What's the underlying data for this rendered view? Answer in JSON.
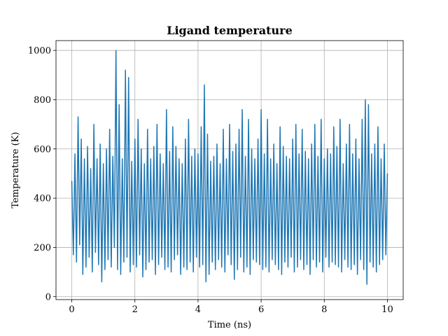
{
  "chart_data": {
    "type": "line",
    "title": "Ligand temperature",
    "xlabel": "Time (ns)",
    "ylabel": "Temperature (K)",
    "xlim": [
      -0.5,
      10.5
    ],
    "ylim": [
      -12,
      1040
    ],
    "xticks": [
      0,
      2,
      4,
      6,
      8,
      10
    ],
    "yticks": [
      0,
      200,
      400,
      600,
      800,
      1000
    ],
    "grid": true,
    "series": [
      {
        "color": "#1f77b4",
        "x": [
          0.0,
          0.05,
          0.1,
          0.15,
          0.2,
          0.25,
          0.3,
          0.35,
          0.4,
          0.45,
          0.5,
          0.55,
          0.6,
          0.65,
          0.7,
          0.75,
          0.8,
          0.85,
          0.9,
          0.95,
          1.0,
          1.05,
          1.1,
          1.15,
          1.2,
          1.25,
          1.3,
          1.35,
          1.4,
          1.45,
          1.5,
          1.55,
          1.6,
          1.65,
          1.7,
          1.75,
          1.8,
          1.85,
          1.9,
          1.95,
          2.0,
          2.05,
          2.1,
          2.15,
          2.2,
          2.25,
          2.3,
          2.35,
          2.4,
          2.45,
          2.5,
          2.55,
          2.6,
          2.65,
          2.7,
          2.75,
          2.8,
          2.85,
          2.9,
          2.95,
          3.0,
          3.05,
          3.1,
          3.15,
          3.2,
          3.25,
          3.3,
          3.35,
          3.4,
          3.45,
          3.5,
          3.55,
          3.6,
          3.65,
          3.7,
          3.75,
          3.8,
          3.85,
          3.9,
          3.95,
          4.0,
          4.05,
          4.1,
          4.15,
          4.2,
          4.25,
          4.3,
          4.35,
          4.4,
          4.45,
          4.5,
          4.55,
          4.6,
          4.65,
          4.7,
          4.75,
          4.8,
          4.85,
          4.9,
          4.95,
          5.0,
          5.05,
          5.1,
          5.15,
          5.2,
          5.25,
          5.3,
          5.35,
          5.4,
          5.45,
          5.5,
          5.55,
          5.6,
          5.65,
          5.7,
          5.75,
          5.8,
          5.85,
          5.9,
          5.95,
          6.0,
          6.05,
          6.1,
          6.15,
          6.2,
          6.25,
          6.3,
          6.35,
          6.4,
          6.45,
          6.5,
          6.55,
          6.6,
          6.65,
          6.7,
          6.75,
          6.8,
          6.85,
          6.9,
          6.95,
          7.0,
          7.05,
          7.1,
          7.15,
          7.2,
          7.25,
          7.3,
          7.35,
          7.4,
          7.45,
          7.5,
          7.55,
          7.6,
          7.65,
          7.7,
          7.75,
          7.8,
          7.85,
          7.9,
          7.95,
          8.0,
          8.05,
          8.1,
          8.15,
          8.2,
          8.25,
          8.3,
          8.35,
          8.4,
          8.45,
          8.5,
          8.55,
          8.6,
          8.65,
          8.7,
          8.75,
          8.8,
          8.85,
          8.9,
          8.95,
          9.0,
          9.05,
          9.1,
          9.15,
          9.2,
          9.25,
          9.3,
          9.35,
          9.4,
          9.45,
          9.5,
          9.55,
          9.6,
          9.65,
          9.7,
          9.75,
          9.8,
          9.85,
          9.9,
          9.95,
          10.0
        ],
        "y": [
          470,
          170,
          580,
          140,
          730,
          210,
          640,
          90,
          560,
          120,
          610,
          160,
          520,
          100,
          700,
          180,
          560,
          130,
          620,
          60,
          540,
          110,
          600,
          150,
          680,
          120,
          570,
          200,
          1000,
          110,
          780,
          90,
          560,
          140,
          920,
          160,
          890,
          100,
          550,
          130,
          640,
          120,
          720,
          170,
          600,
          80,
          540,
          110,
          680,
          140,
          560,
          150,
          610,
          90,
          700,
          130,
          580,
          160,
          540,
          110,
          760,
          120,
          590,
          100,
          690,
          150,
          610,
          170,
          560,
          90,
          540,
          120,
          640,
          110,
          720,
          140,
          570,
          100,
          600,
          160,
          580,
          120,
          690,
          130,
          860,
          60,
          660,
          90,
          550,
          140,
          570,
          110,
          620,
          150,
          540,
          120,
          680,
          100,
          560,
          170,
          700,
          130,
          590,
          70,
          620,
          110,
          680,
          160,
          760,
          100,
          570,
          120,
          720,
          90,
          600,
          150,
          560,
          140,
          640,
          130,
          760,
          110,
          580,
          120,
          720,
          100,
          560,
          150,
          620,
          130,
          540,
          110,
          690,
          90,
          610,
          140,
          570,
          120,
          560,
          160,
          640,
          100,
          700,
          120,
          580,
          150,
          680,
          110,
          590,
          130,
          560,
          90,
          620,
          150,
          700,
          120,
          570,
          140,
          720,
          100,
          560,
          160,
          600,
          120,
          580,
          140,
          690,
          130,
          610,
          120,
          720,
          100,
          540,
          150,
          620,
          120,
          700,
          110,
          580,
          130,
          640,
          90,
          560,
          150,
          720,
          110,
          800,
          50,
          780,
          140,
          580,
          120,
          620,
          100,
          690,
          130,
          560,
          150,
          620,
          170,
          500
        ]
      }
    ]
  }
}
